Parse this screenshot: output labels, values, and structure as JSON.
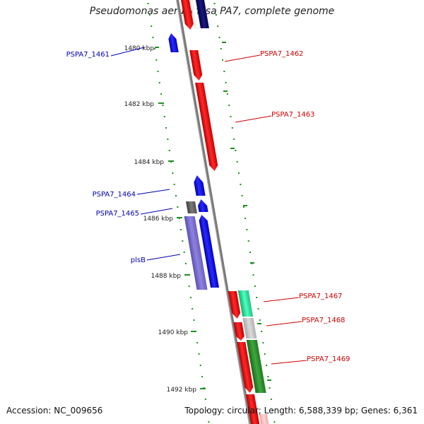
{
  "header": {
    "title": "Pseudomonas aeruginosa PA7, complete genome"
  },
  "footer": {
    "accession": "Accession: NC_009656",
    "summary": "Topology: circular; Length: 6,588,339 bp; Genes: 6,361"
  },
  "colors": {
    "forward_gene": "#ff0000",
    "reverse_gene": "#0000ff",
    "backbone": "#888888",
    "ticks": "#1f8f1f",
    "label_forward": "#cc0000",
    "label_reverse": "#0000b0"
  },
  "scale": {
    "tick_labels": [
      "1480 kbp",
      "1482 kbp",
      "1484 kbp",
      "1486 kbp",
      "1488 kbp",
      "1490 kbp",
      "1492 kbp"
    ]
  },
  "gene_labels": {
    "pspa7_1461": "PSPA7_1461",
    "pspa7_1462": "PSPA7_1462",
    "pspa7_1463": "PSPA7_1463",
    "pspa7_1464": "PSPA7_1464",
    "pspa7_1465": "PSPA7_1465",
    "plsb": "plsB",
    "pspa7_1467": "PSPA7_1467",
    "pspa7_1468": "PSPA7_1468",
    "pspa7_1469": "PSPA7_1469"
  }
}
